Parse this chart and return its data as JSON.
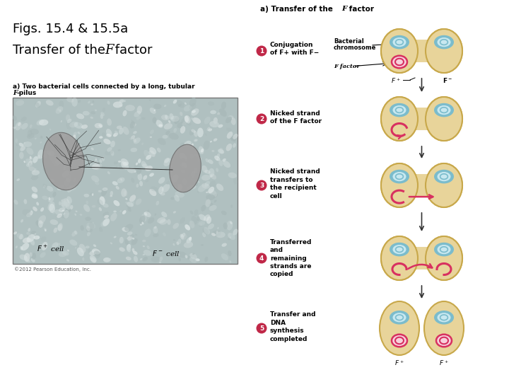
{
  "title_line1": "Figs. 15.4 & 15.5a",
  "title_line2_prefix": "Transfer of the ",
  "title_line2_italic": "F",
  "title_line2_suffix": " factor",
  "section_a_title_prefix": "a) Transfer of the ",
  "section_a_italic": "F",
  "section_a_suffix": " factor",
  "photo_caption_prefix": "a) Two bacterial cells connected by a long, tubular ",
  "photo_caption_italic": "F",
  "photo_caption_suffix": "-pilus",
  "copyright": "©2012 Pearson Education, Inc.",
  "step_texts": [
    "Conjugation\nof F+ with F−",
    "Nicked strand\nof the F factor",
    "Nicked strand\ntransfers to\nthe recipient\ncell",
    "Transferred\nand\nremaining\nstrands are\ncopied",
    "Transfer and\nDNA\nsynthesis\ncompleted"
  ],
  "ann_label1_line1": "Bacterial",
  "ann_label1_line2": "chromosome",
  "ann_label2": "F factor",
  "step1_bot_left": "F+",
  "step1_bot_right": "F−",
  "final_left": "F+",
  "final_right": "F+",
  "cell_color": "#E8D49A",
  "cell_edge_color": "#C8A84A",
  "chr_outer_color": "#7BBCCC",
  "chr_inner_color": "#C8E8F0",
  "chr_bg_color": "#C8E8F0",
  "f_color": "#D83060",
  "f_fill_color": "#F8D0DC",
  "bg_color": "#FFFFFF",
  "step_circle_color": "#C02848",
  "photo_bg": "#B0C0C0",
  "photo_noise_colors": [
    "#C8D4D4",
    "#D8E0E0",
    "#A8B8B8",
    "#E0E8E8"
  ],
  "cell1_color": "#909090",
  "cell2_color": "#909090"
}
